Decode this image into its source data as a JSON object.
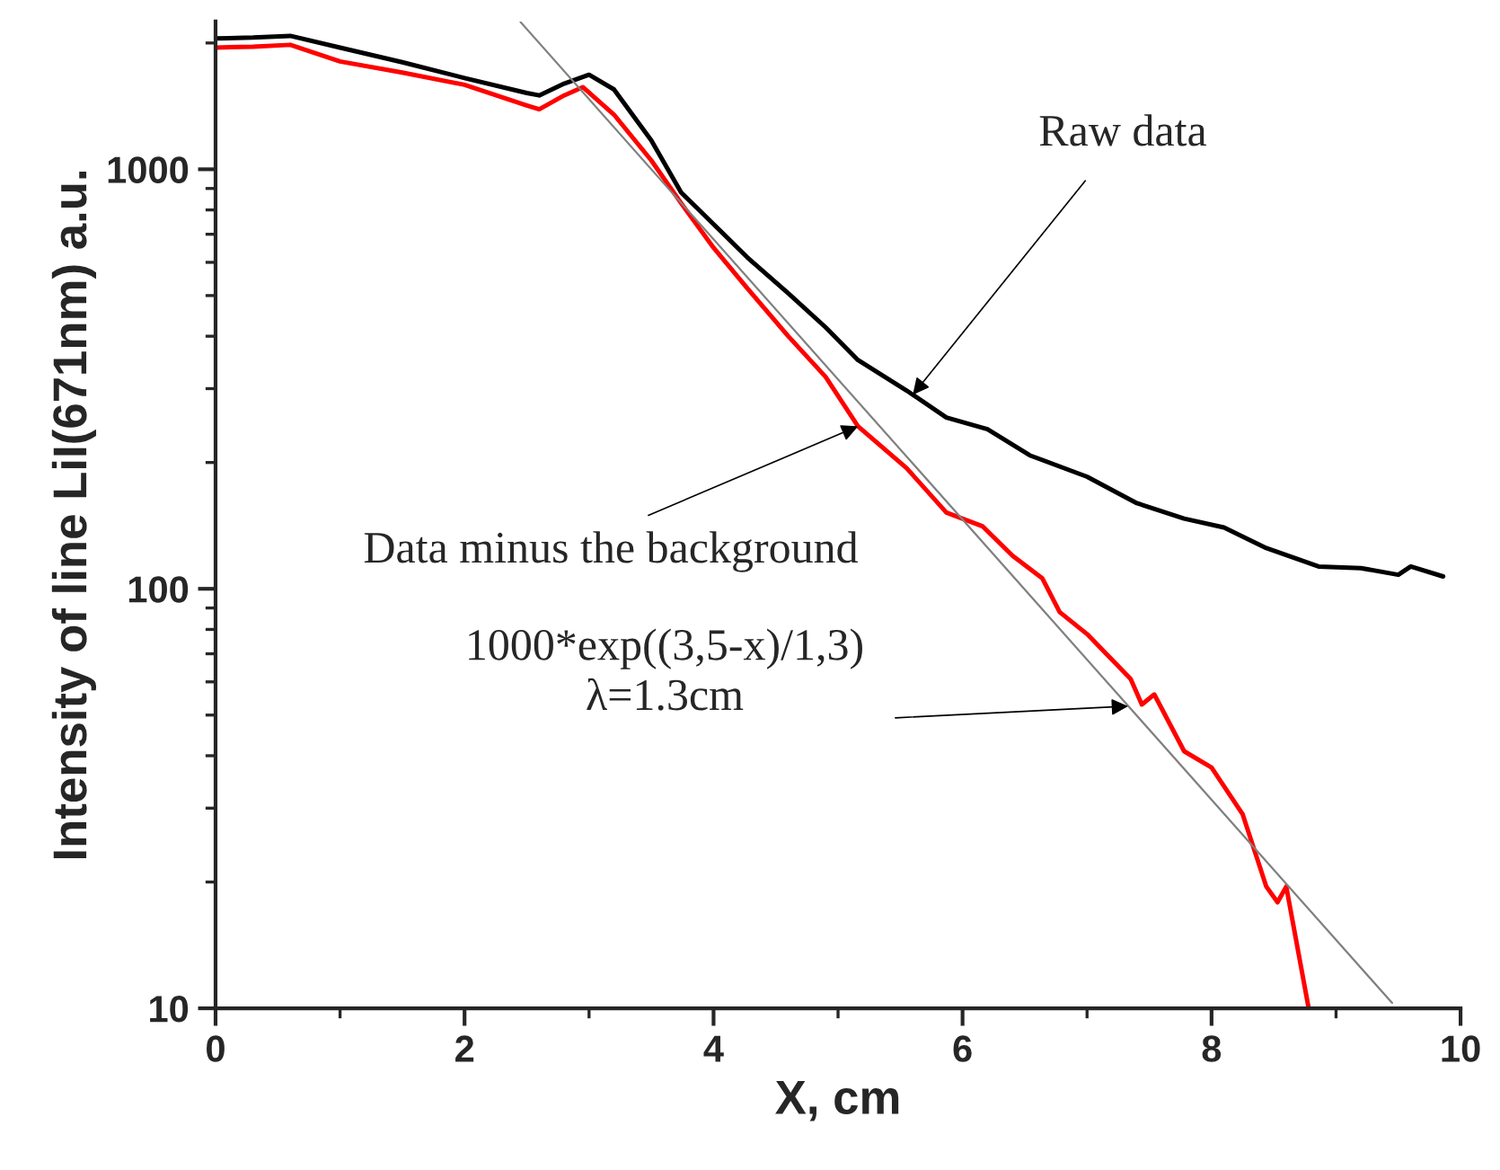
{
  "chart_data": {
    "type": "line",
    "xlabel": "X, cm",
    "ylabel": "Intensity of line LiI(671nm) a.u.",
    "log": "y",
    "grid": false,
    "legend": false,
    "marker": "none",
    "line_style": "solid",
    "xlim": [
      0,
      10
    ],
    "xticks": [
      0,
      2,
      4,
      6,
      8,
      10
    ],
    "ylim": [
      10,
      2250
    ],
    "yticks": [
      10,
      100,
      1000
    ],
    "series": [
      {
        "color": "#000000",
        "x": [
          0,
          0.3,
          0.6,
          1.0,
          1.5,
          2.0,
          2.5,
          2.6,
          2.8,
          3.0,
          3.2,
          3.5,
          3.74,
          4.0,
          4.27,
          4.6,
          4.9,
          5.16,
          5.55,
          5.87,
          6.2,
          6.54,
          7.0,
          7.4,
          7.78,
          8.1,
          8.44,
          8.86,
          9.2,
          9.5,
          9.6,
          9.86
        ],
        "values": [
          2050,
          2060,
          2080,
          1950,
          1800,
          1650,
          1520,
          1500,
          1600,
          1680,
          1550,
          1172,
          880,
          740,
          617,
          506,
          420,
          351,
          297,
          256,
          240,
          208,
          185,
          160,
          147,
          140,
          125,
          113,
          112,
          108,
          113,
          107
        ]
      },
      {
        "color": "#ff0000",
        "x": [
          0,
          0.3,
          0.6,
          1.0,
          1.5,
          2.0,
          2.5,
          2.6,
          2.8,
          2.95,
          3.2,
          3.5,
          3.74,
          4.0,
          4.27,
          4.6,
          4.9,
          5.16,
          5.55,
          5.87,
          6.16,
          6.4,
          6.64,
          6.78,
          7.0,
          7.35,
          7.44,
          7.54,
          7.78,
          8.0,
          8.25,
          8.44,
          8.53,
          8.6,
          8.78
        ],
        "values": [
          1950,
          1960,
          1980,
          1807,
          1700,
          1590,
          1420,
          1390,
          1500,
          1570,
          1350,
          1050,
          830,
          650,
          521,
          400,
          320,
          244,
          194,
          152,
          141,
          120,
          106,
          88,
          78,
          61,
          53,
          56,
          41,
          37.5,
          29,
          19.5,
          17.9,
          19.5,
          10
        ]
      },
      {
        "color": "#808080",
        "x": [
          2.45,
          9.45
        ],
        "values": [
          2243,
          10.3
        ]
      }
    ],
    "annotations": [
      {
        "text": "Raw data",
        "x": 5.6,
        "y": 290
      },
      {
        "text": "Data minus the background",
        "x": 5.16,
        "y": 244
      },
      {
        "text": "1000*exp((3,5-x)/1,3)\nλ=1.3cm",
        "x": 7.33,
        "y": 52.5
      }
    ]
  }
}
